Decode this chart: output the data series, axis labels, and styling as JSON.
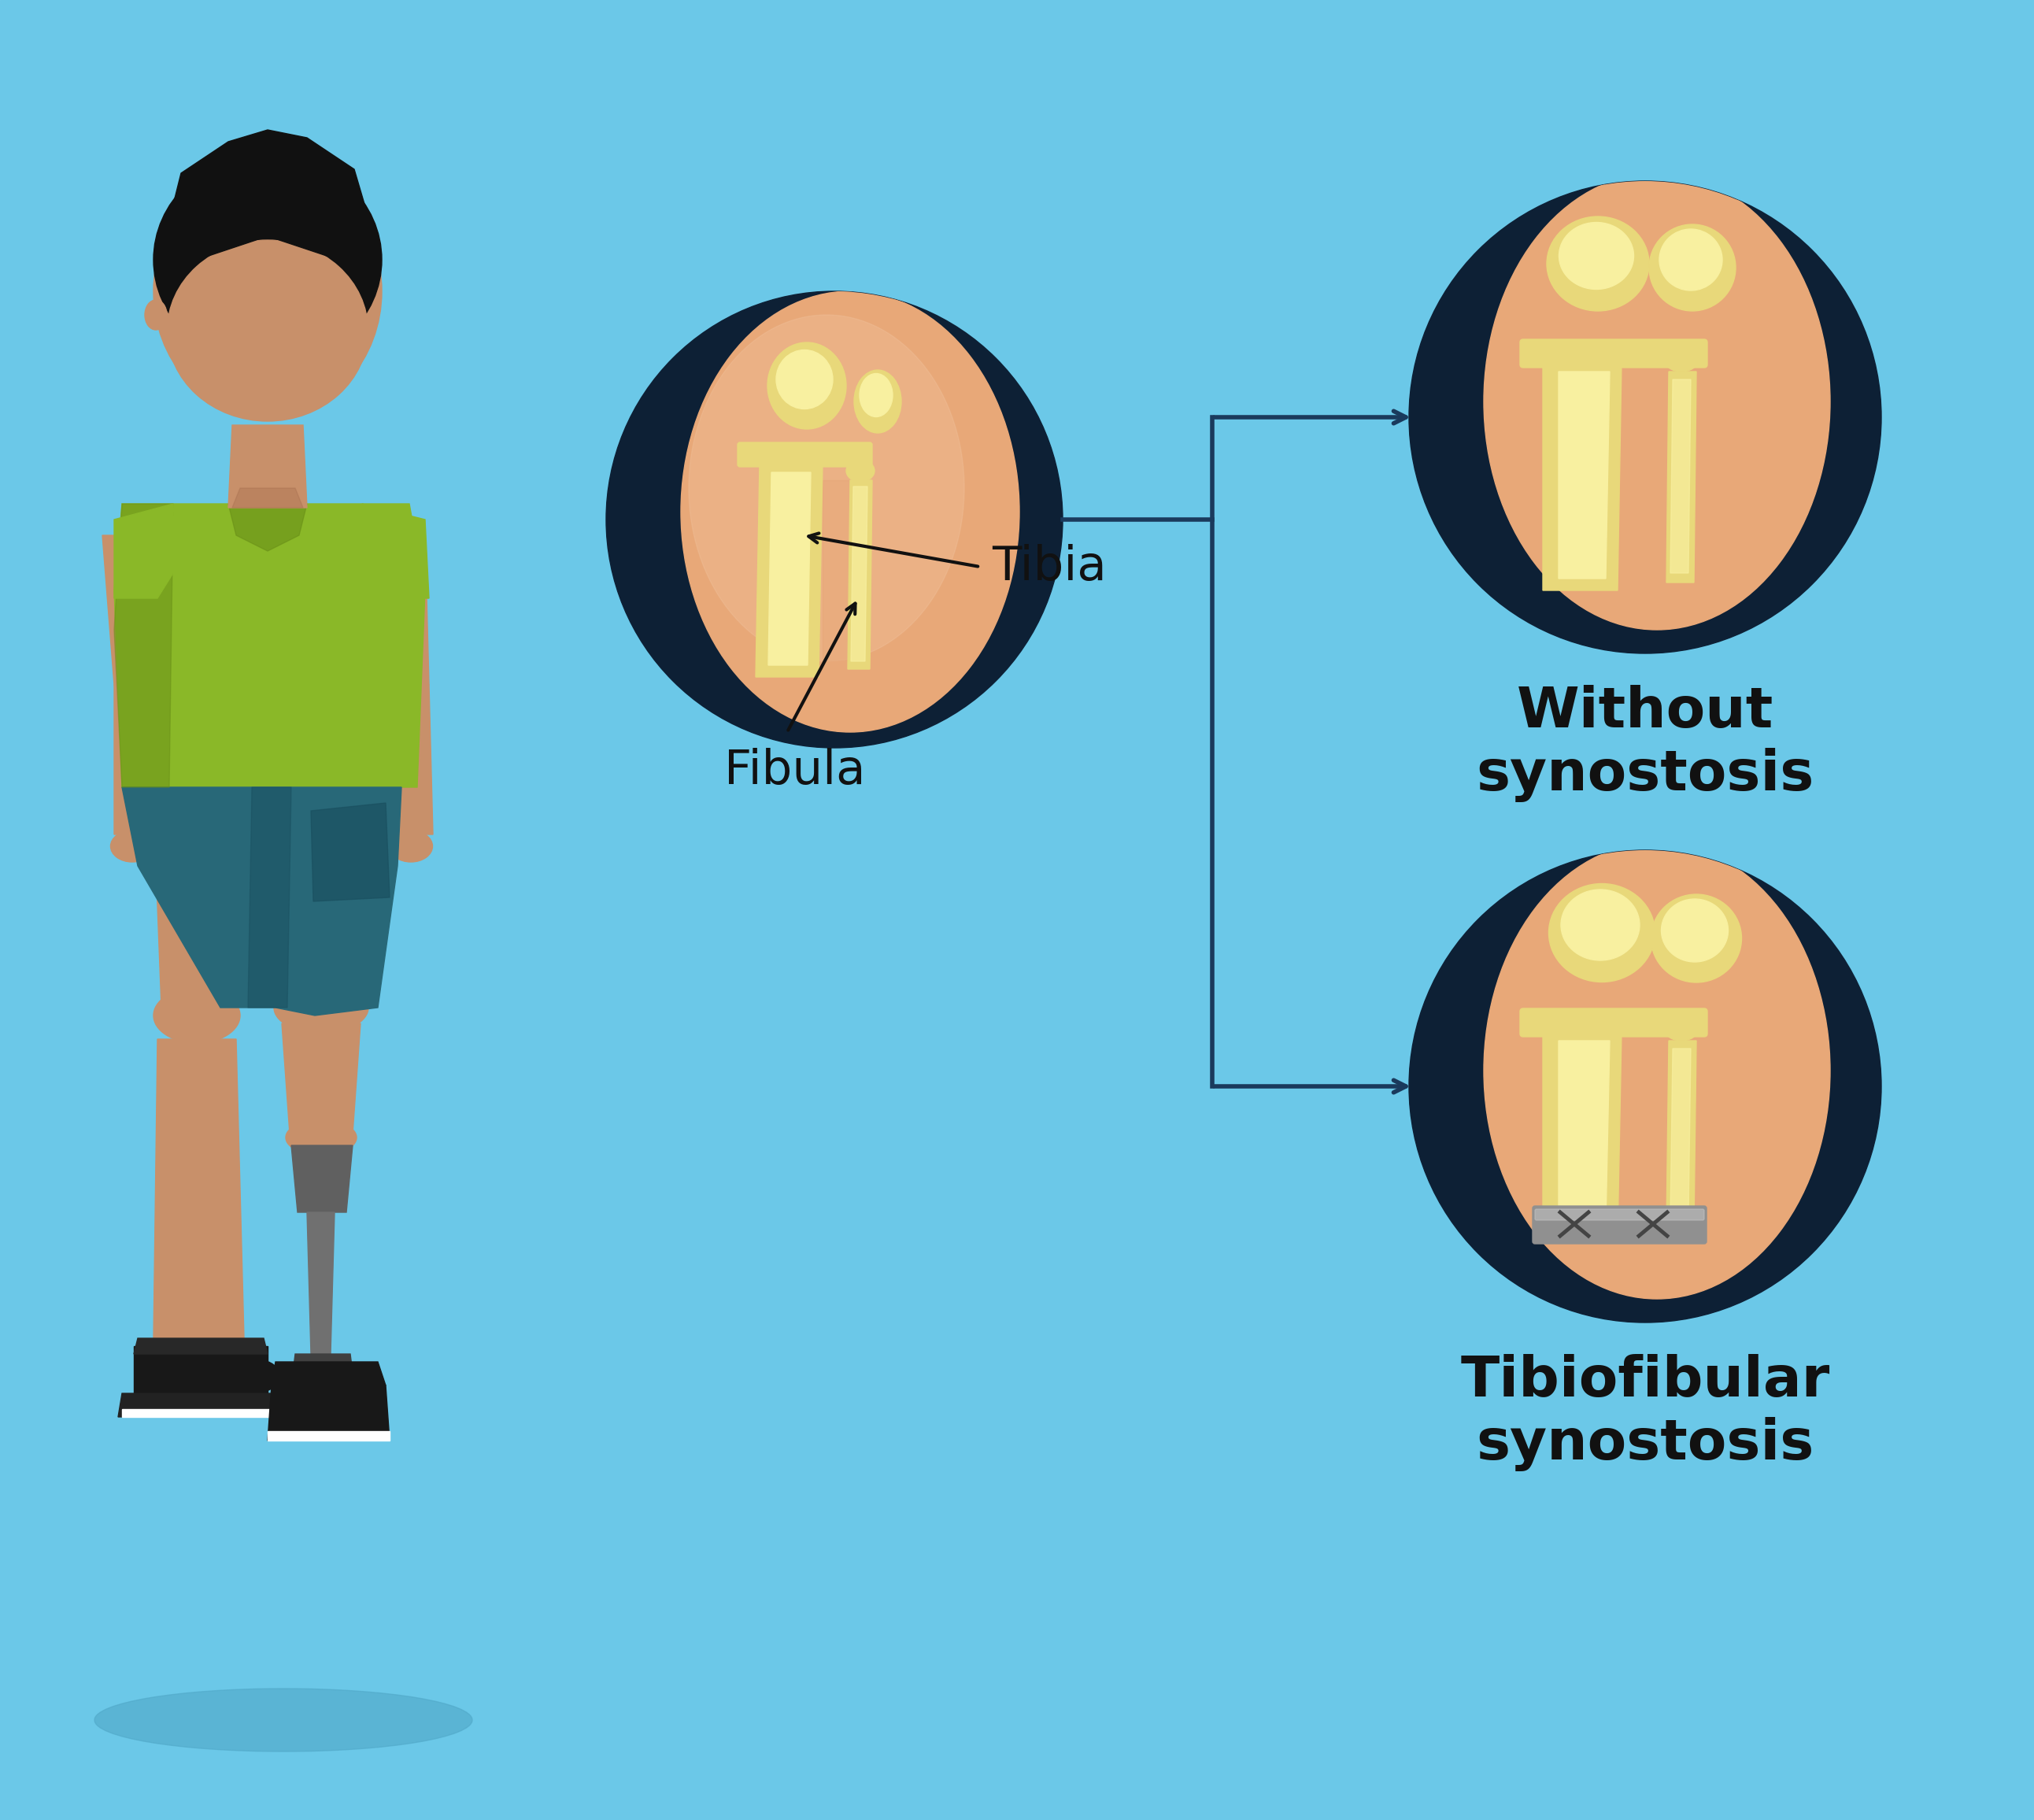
{
  "bg_color": "#6bc8e8",
  "dark_navy": "#0d2035",
  "skin_color": "#c8906a",
  "skin_dark": "#a87050",
  "skin_light": "#d8a080",
  "hair_color": "#111111",
  "shirt_color": "#8ab828",
  "shirt_dark": "#6a9018",
  "shirt_light": "#a0d038",
  "shorts_color": "#286878",
  "shorts_dark": "#1a5060",
  "prosthetic_color": "#606060",
  "prosthetic_dark": "#404040",
  "shoe_color": "#181818",
  "bone_color": "#e8d87a",
  "bone_light": "#f8f0a0",
  "bone_dark": "#c8b850",
  "flesh_color": "#e8a878",
  "flesh_light": "#f0c09a",
  "label_color": "#111111",
  "arrow_color": "#1a3a5c",
  "without_label": "Without\nsynostosis",
  "with_label": "Tibiofibular\nsynostosis",
  "tibia_label": "Tibia",
  "fibula_label": "Fibula",
  "label_fontsize": 52,
  "annotation_fontsize": 44,
  "fig_width": 25.84,
  "fig_height": 23.12
}
